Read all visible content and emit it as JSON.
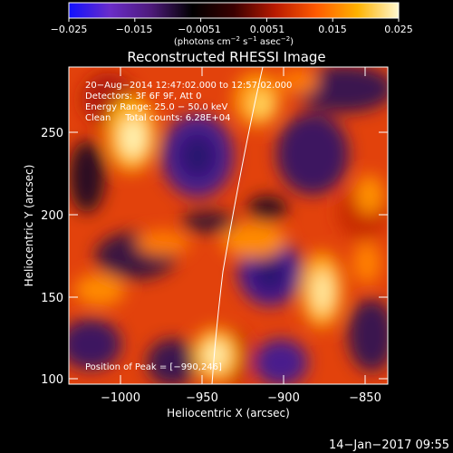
{
  "colorbar": {
    "ticks": [
      "−0.025",
      "−0.015",
      "−0.0051",
      "0.0051",
      "0.015",
      "0.025"
    ],
    "unit_prefix": "(photons cm",
    "unit_exp1": "−2",
    "unit_mid": " s",
    "unit_exp2": "−1",
    "unit_mid2": " asec",
    "unit_exp3": "−2",
    "unit_suffix": ")",
    "stops": [
      "#1010ff",
      "#6a2cc9",
      "#4d1a7a",
      "#000000",
      "#3a0000",
      "#b81a00",
      "#ff5a00",
      "#ffb200",
      "#fff8d0"
    ]
  },
  "plot": {
    "title": "Reconstructed RHESSI Image",
    "info_lines": [
      "20−Aug−2014 12:47:02.000 to 12:57:02.000",
      "Detectors: 3F 6F 9F, Att 0",
      "Energy Range: 25.0 − 50.0 keV",
      "Clean     Total counts: 6.28E+04"
    ],
    "peak_label": "Position of Peak = [−990,246]",
    "xlabel": "Heliocentric X (arcsec)",
    "ylabel": "Heliocentric Y (arcsec)",
    "xticks": [
      "−1000",
      "−950",
      "−900",
      "−850"
    ],
    "yticks": [
      "100",
      "150",
      "200",
      "250"
    ]
  },
  "footer": {
    "timestamp": "14−Jan−2017 09:55"
  }
}
